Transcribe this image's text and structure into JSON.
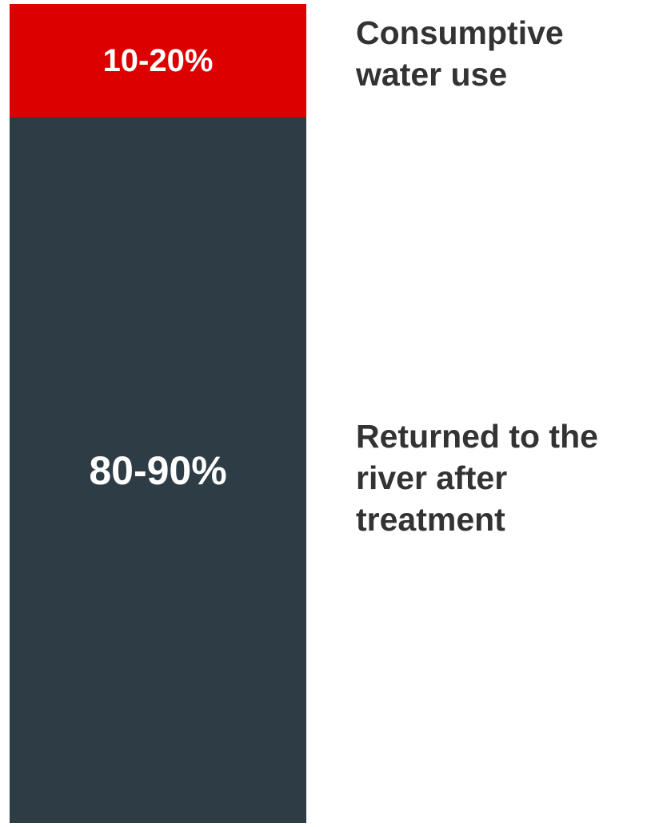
{
  "segments": [
    {
      "label": "10-20%",
      "description": [
        "Consumptive",
        "water use"
      ]
    },
    {
      "label": "80-90%",
      "description": [
        "Returned to the",
        "river after",
        "treatment"
      ]
    }
  ]
}
